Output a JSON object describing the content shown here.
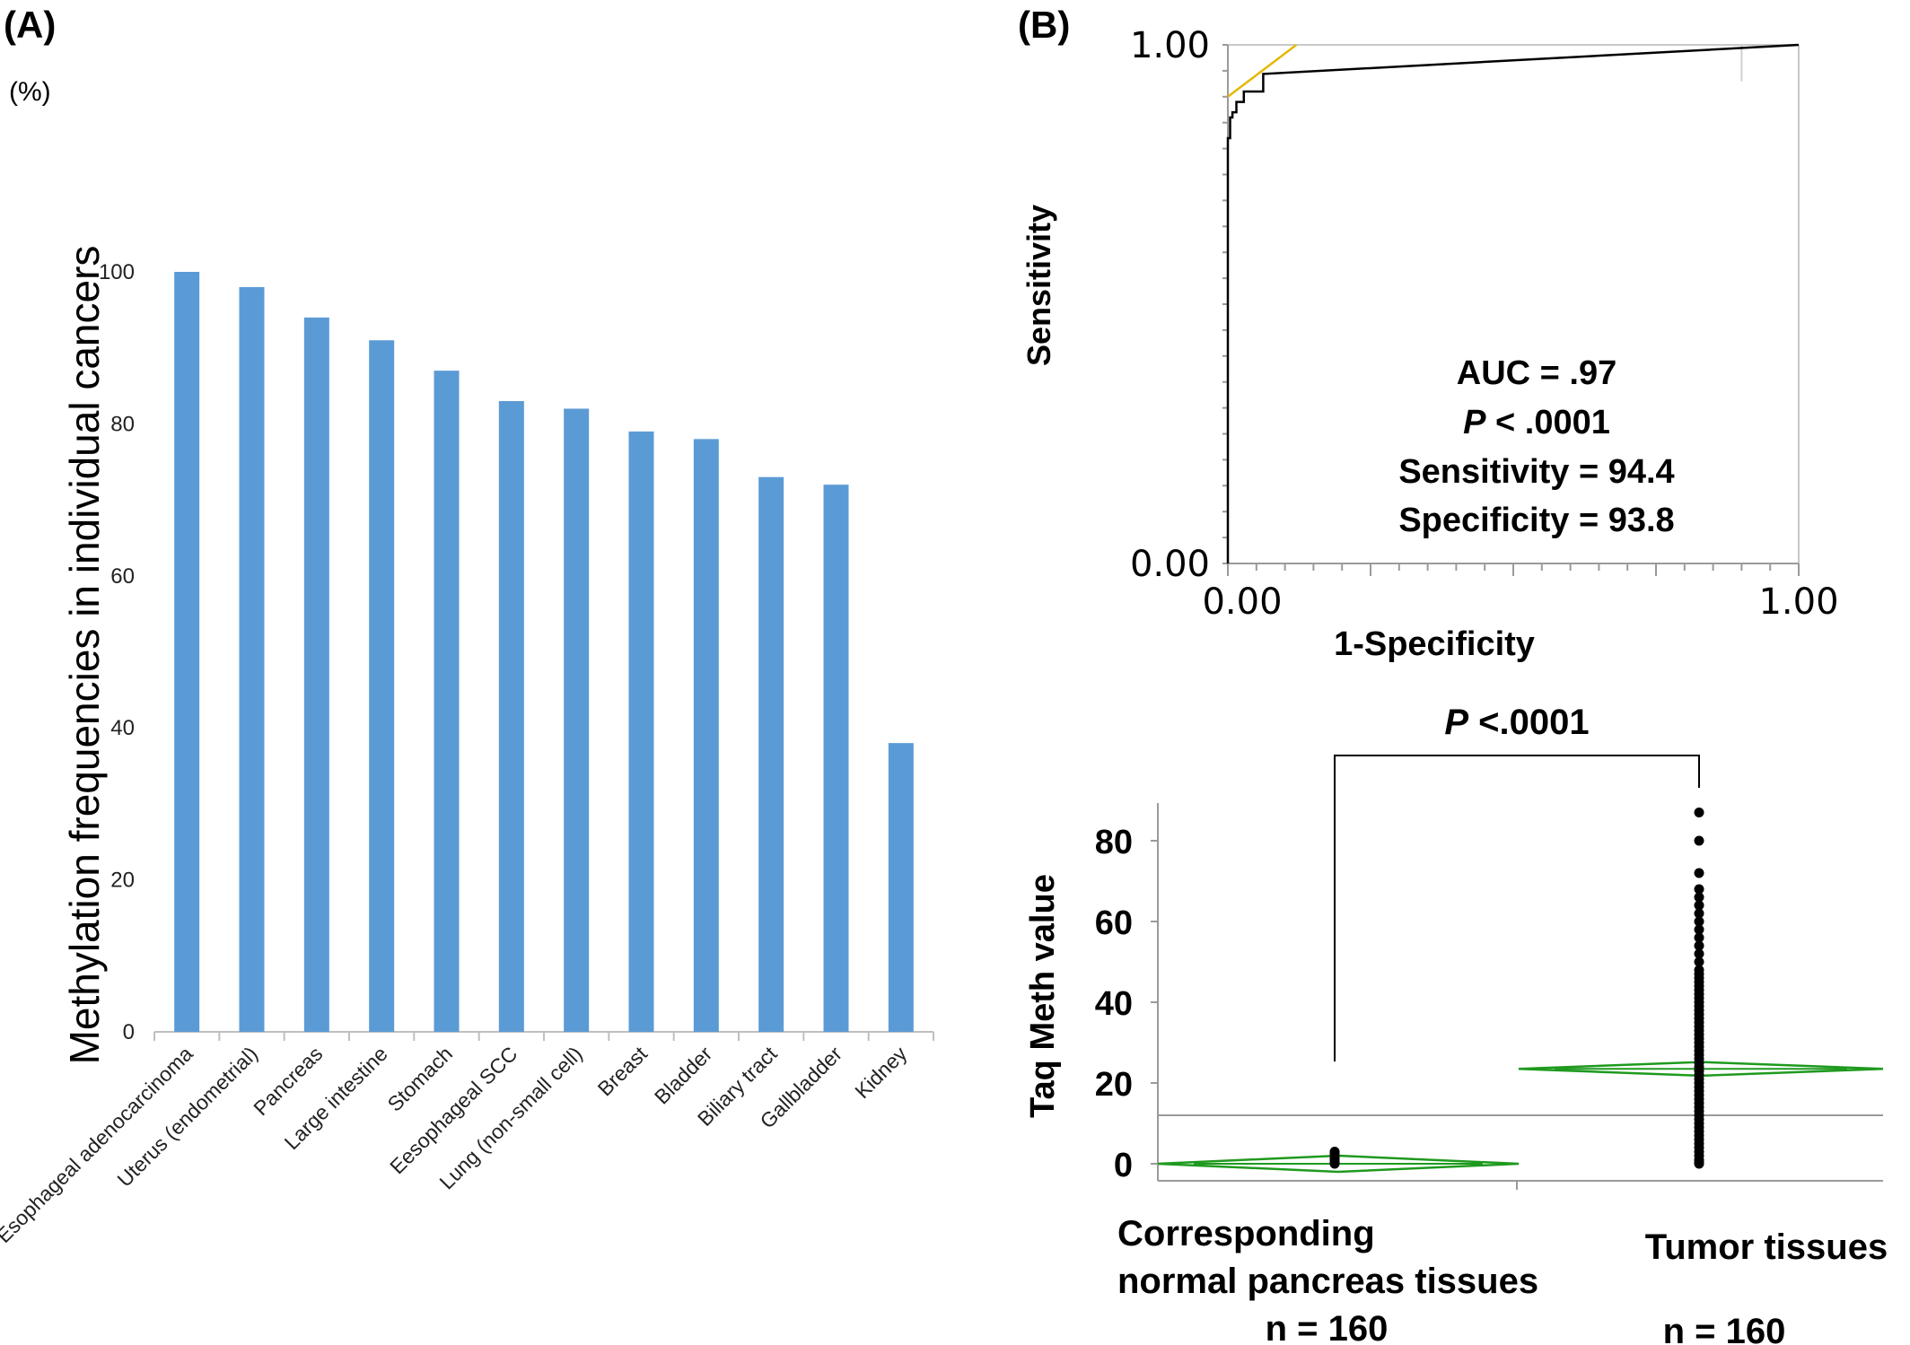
{
  "panel_a": {
    "label": "(A)",
    "unit": "(%)"
  },
  "panel_b": {
    "label": "(B)"
  },
  "chart_data": [
    {
      "type": "bar",
      "panel": "A",
      "ylabel": "Methylation frequencies in individual cancers",
      "ylim": [
        0,
        100
      ],
      "yticks": [
        0,
        20,
        40,
        60,
        80,
        100
      ],
      "bar_color": "#5b9bd5",
      "categories": [
        "Esophageal adenocarcinoma",
        "Uterus (endometrial)",
        "Pancreas",
        "Large intestine",
        "Stomach",
        "Eesophageal SCC",
        "Lung (non-small cell)",
        "Breast",
        "Bladder",
        "Biliary tract",
        "Gallbladder",
        "Kidney"
      ],
      "values": [
        100,
        98,
        94,
        91,
        87,
        83,
        82,
        79,
        78,
        73,
        72,
        38
      ]
    },
    {
      "type": "line",
      "panel": "B-top",
      "xlabel": "1-Specificity",
      "ylabel": "Sensitivity",
      "xlim": [
        0,
        1
      ],
      "ylim": [
        0,
        1
      ],
      "xtick_labels": [
        "0.00",
        "1.00"
      ],
      "ytick_labels": [
        "0.00",
        "1.00"
      ],
      "annotations": [
        "AUC = .97",
        "P < .0001",
        "Sensitivity = 94.4",
        "Specificity =  93.8"
      ],
      "series": [
        {
          "color": "#000000",
          "x": [
            0,
            0,
            0.004,
            0.004,
            0.008,
            0.008,
            0.015,
            0.015,
            0.028,
            0.028,
            0.062,
            0.062,
            1.0
          ],
          "y": [
            0,
            0.82,
            0.82,
            0.86,
            0.86,
            0.87,
            0.87,
            0.89,
            0.89,
            0.91,
            0.91,
            0.944,
            1.0
          ]
        },
        {
          "color": "#e5b800",
          "x": [
            0,
            0.12
          ],
          "y": [
            0.9,
            1.0
          ]
        }
      ]
    },
    {
      "type": "scatter",
      "panel": "B-bottom",
      "ylabel": "Taq Meth value",
      "ylim": [
        -5,
        90
      ],
      "yticks": [
        0,
        20,
        40,
        60,
        80
      ],
      "significance": "P <.0001",
      "reference_line": 12,
      "groups": [
        {
          "name_lines": [
            "Corresponding",
            "normal pancreas tissues"
          ],
          "n_label": "n = 160",
          "mean": 0,
          "ci": [
            -2,
            2
          ],
          "points": [
            0,
            0.5,
            1,
            1.5,
            2,
            2.5,
            3
          ]
        },
        {
          "name_lines": [
            "Tumor tissues"
          ],
          "n_label": "n = 160",
          "mean": 23.5,
          "ci": [
            21.8,
            25.2
          ],
          "points": [
            0,
            0.5,
            1,
            2,
            3,
            4,
            5,
            6,
            7,
            8,
            9,
            10,
            11,
            12,
            13,
            14,
            15,
            16,
            17,
            18,
            19,
            20,
            21,
            22,
            23,
            24,
            25,
            26,
            27,
            28,
            29,
            30,
            31,
            32,
            33,
            34,
            35,
            36,
            37,
            38,
            39,
            40,
            41,
            42,
            43,
            44,
            45,
            46,
            47,
            48,
            50,
            52,
            54,
            56,
            58,
            60,
            62,
            64,
            66,
            68,
            72,
            80,
            87
          ]
        }
      ]
    }
  ]
}
